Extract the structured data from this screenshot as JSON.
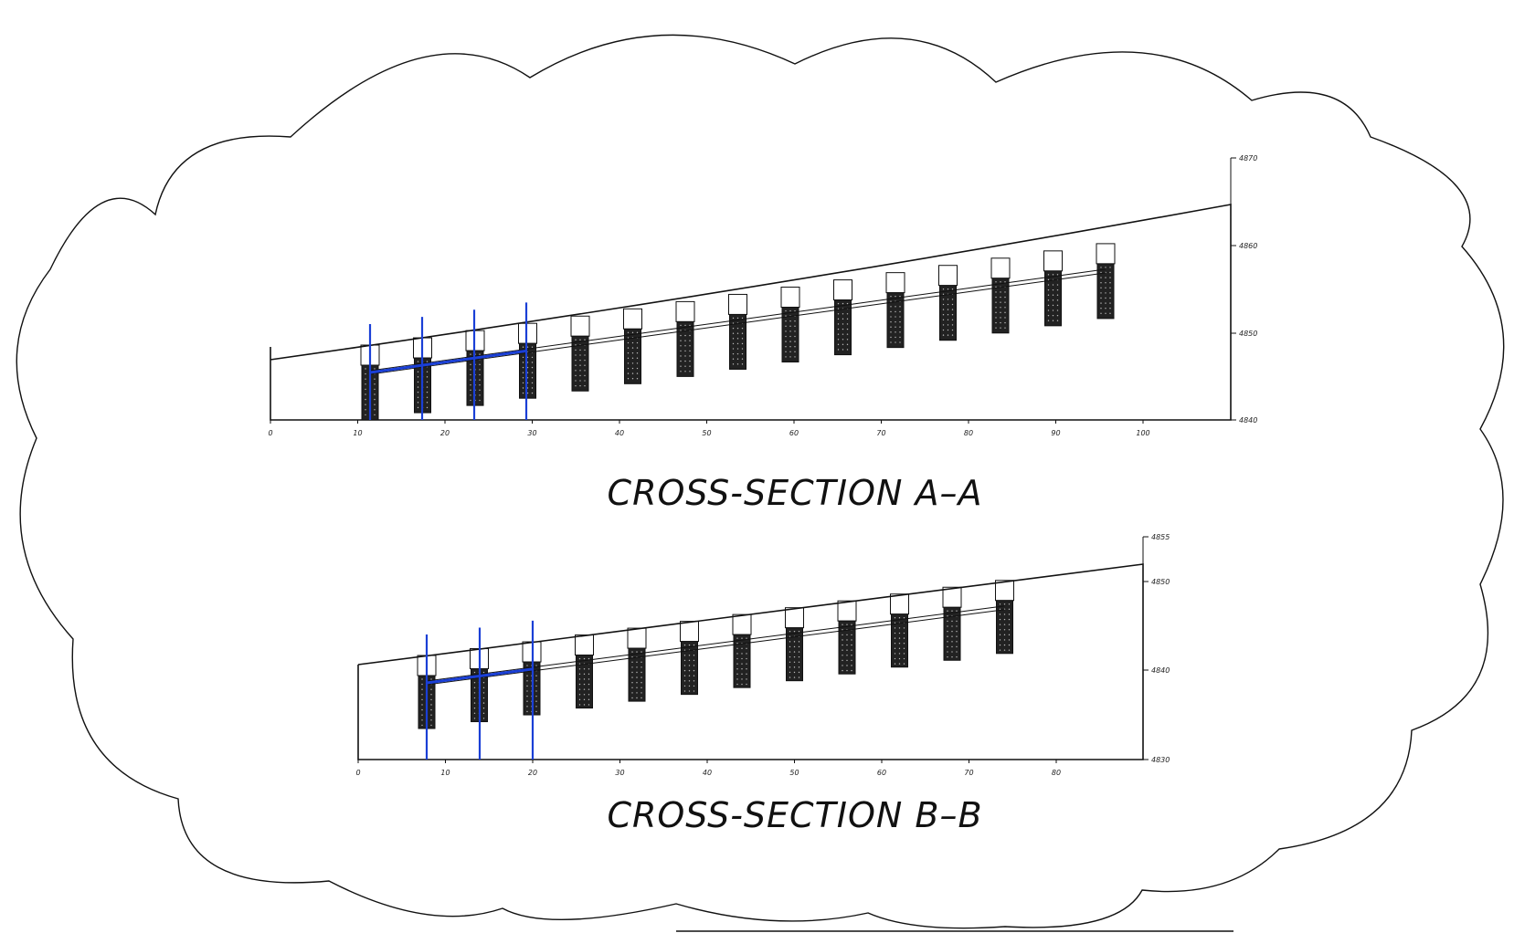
{
  "sections": [
    {
      "id": "a",
      "title": "CROSS-SECTION A–A",
      "x_ticks": [
        "0",
        "10",
        "20",
        "30",
        "40",
        "50",
        "60",
        "70",
        "80",
        "90",
        "100"
      ],
      "y_ticks": [
        "4870",
        "4860",
        "4850",
        "4840"
      ],
      "ground_elevation": [
        {
          "x": 0,
          "y": 4847.3
        },
        {
          "x": 110,
          "y": 4865.2
        }
      ],
      "piers_count": 15,
      "highlighted_pier_stations": [
        11.5,
        17.5,
        23.5,
        29.5
      ]
    },
    {
      "id": "b",
      "title": "CROSS-SECTION B–B",
      "x_ticks": [
        "0",
        "10",
        "20",
        "30",
        "40",
        "50",
        "60",
        "70",
        "80"
      ],
      "y_ticks": [
        "4855",
        "4850",
        "4840",
        "4830"
      ],
      "ground_elevation": [
        {
          "x": 0,
          "y": 4840.4
        },
        {
          "x": 90,
          "y": 4849.7
        }
      ],
      "piers_count": 12,
      "highlighted_pier_stations": [
        8,
        14,
        20
      ]
    }
  ],
  "colors": {
    "ink": "#111111",
    "highlight": "#1a3fd6",
    "pier_fill": "#222222",
    "pier_dots": "#bbbbbb"
  }
}
